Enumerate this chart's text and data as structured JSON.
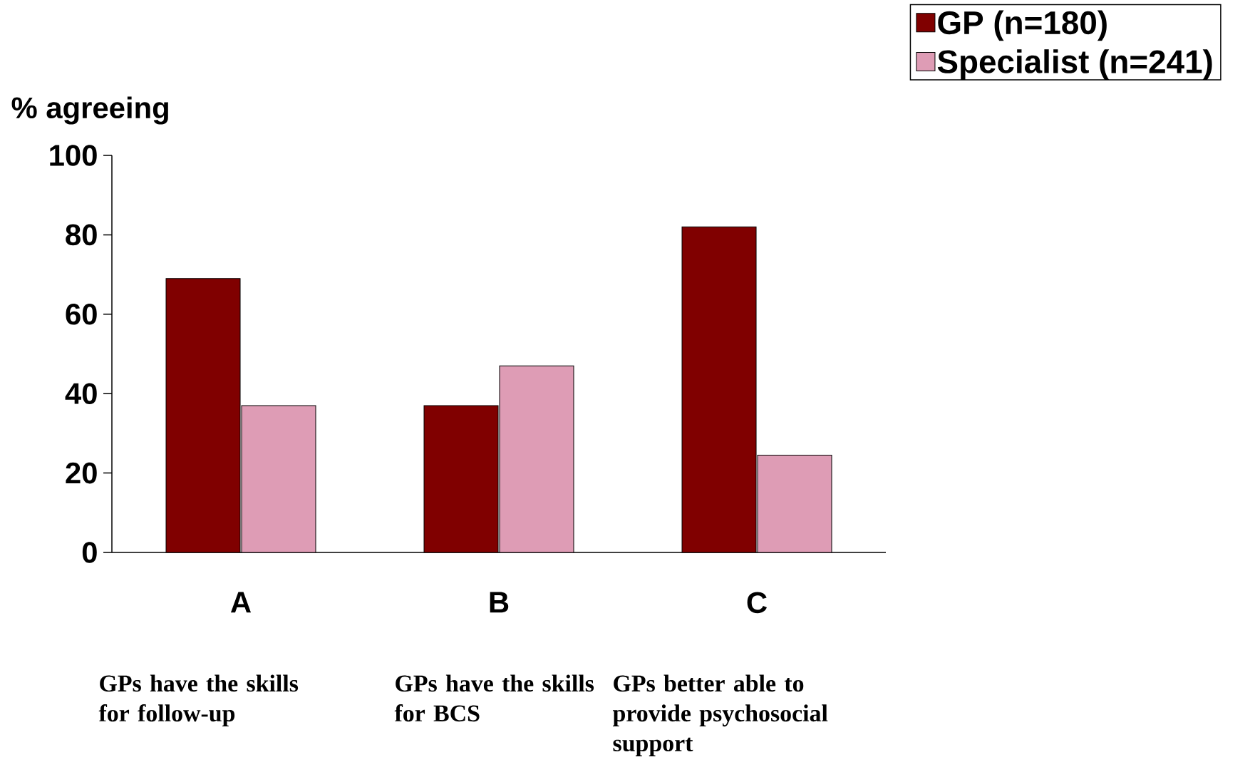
{
  "chart_data": {
    "type": "bar",
    "ylabel": "% agreeing",
    "categories": [
      "A",
      "B",
      "C"
    ],
    "series": [
      {
        "name": "GP (n=180)",
        "color": "#800000",
        "values": [
          69,
          37,
          82
        ]
      },
      {
        "name": "Specialist (n=241)",
        "color": "#de9cb5",
        "values": [
          37,
          47,
          24.5
        ]
      }
    ],
    "ylim": [
      0,
      100
    ],
    "yticks": [
      0,
      20,
      40,
      60,
      80,
      100
    ],
    "grid": false,
    "legend": "top right",
    "annotations": [
      "GPs have the skills for follow-up",
      "GPs have the skills for BCS",
      "GPs better able to provide psychosocial support"
    ]
  }
}
